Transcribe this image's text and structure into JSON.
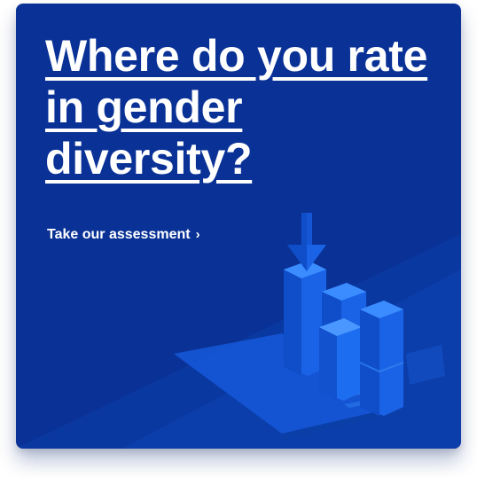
{
  "card": {
    "headline": "Where do you rate in gender diversity?",
    "cta_label": "Take our assessment",
    "cta_chevron": "›",
    "colors": {
      "background": "#0a3296",
      "accent_light": "#2f7ff0",
      "text": "#ffffff"
    },
    "illustration_icon": "isometric-bar-chart-icon",
    "arrow_icon": "down-arrow-icon"
  }
}
